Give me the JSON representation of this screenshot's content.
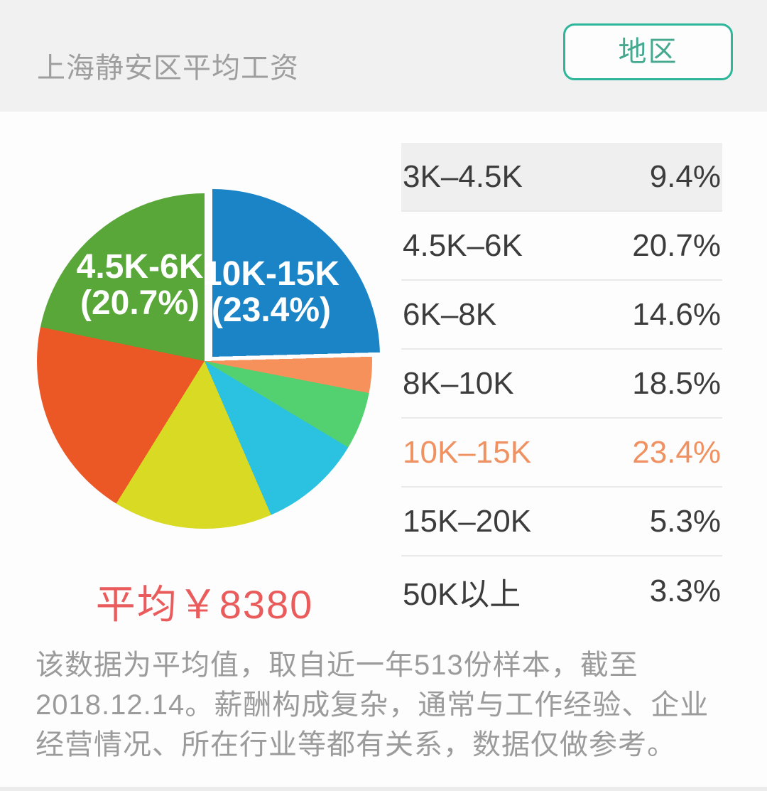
{
  "header": {
    "title": "上海静安区平均工资",
    "region_button": "地区"
  },
  "chart_data": {
    "type": "pie",
    "title": "上海静安区平均工资",
    "categories": [
      "3K-4.5K",
      "4.5K-6K",
      "6K-8K",
      "8K-10K",
      "10K-15K",
      "15K-20K",
      "50K以上"
    ],
    "values": [
      9.4,
      20.7,
      14.6,
      18.5,
      23.4,
      5.3,
      3.3
    ],
    "highlighted_category": "10K-15K",
    "average_text": "平均￥8380",
    "inner_labels": [
      {
        "line1": "4.5K-6K",
        "line2": "(20.7%)"
      },
      {
        "line1": "10K-15K",
        "line2": "(23.4%)"
      }
    ],
    "slices": [
      {
        "category": "10K-15K",
        "percent": 23.4,
        "color": "#1a84c6",
        "start": 0,
        "end": 88.5,
        "exploded": true
      },
      {
        "category": "50K以上",
        "percent": 3.3,
        "color": "#f6915c",
        "start": 88.5,
        "end": 101
      },
      {
        "category": "15K-20K",
        "percent": 5.3,
        "color": "#53d171",
        "start": 101,
        "end": 121
      },
      {
        "category": "3K-4.5K",
        "percent": 9.4,
        "color": "#2bc1e0",
        "start": 121,
        "end": 156.6
      },
      {
        "category": "6K-8K",
        "percent": 14.6,
        "color": "#d9da24",
        "start": 156.6,
        "end": 211.8
      },
      {
        "category": "8K-10K",
        "percent": 18.5,
        "color": "#ec5726",
        "start": 211.8,
        "end": 281.7
      },
      {
        "category": "4.5K-6K",
        "percent": 20.7,
        "color": "#58a738",
        "start": 281.7,
        "end": 360
      }
    ]
  },
  "table": {
    "rows": [
      {
        "range": "3K–4.5K",
        "percent": "9.4%",
        "selected": true
      },
      {
        "range": "4.5K–6K",
        "percent": "20.7%"
      },
      {
        "range": "6K–8K",
        "percent": "14.6%"
      },
      {
        "range": "8K–10K",
        "percent": "18.5%"
      },
      {
        "range": "10K–15K",
        "percent": "23.4%",
        "active": true
      },
      {
        "range": "15K–20K",
        "percent": "5.3%"
      },
      {
        "range": "50K以上",
        "percent": "3.3%"
      }
    ]
  },
  "average": {
    "text": "平均￥8380"
  },
  "footer": {
    "note": "该数据为平均值，取自近一年513份样本，截至2018.12.14。薪酬构成复杂，通常与工作经验、企业经营情况、所在行业等都有关系，数据仅做参考。"
  },
  "colors": {
    "accent_teal": "#2eb69a",
    "highlight_orange": "#ef9160",
    "average_red": "#ea5c5c"
  }
}
